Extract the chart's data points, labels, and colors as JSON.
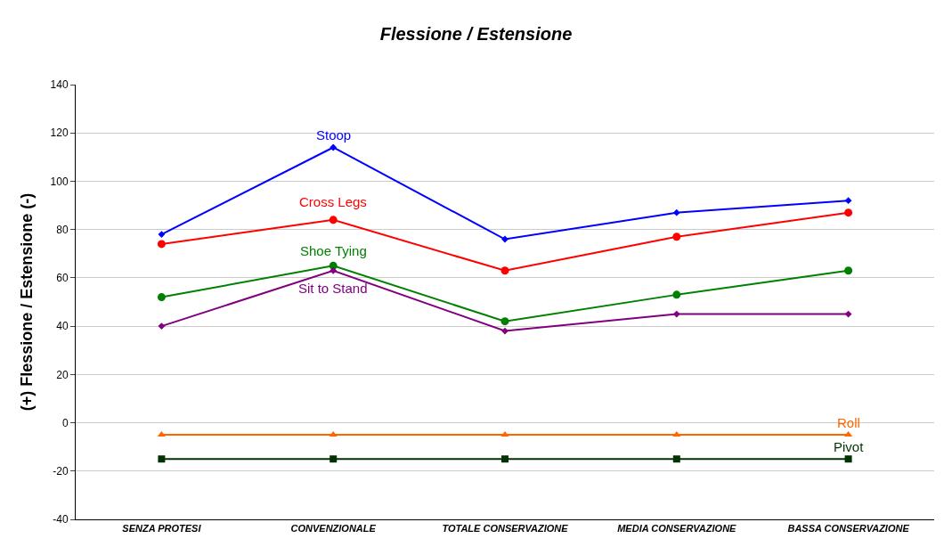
{
  "chart_data": {
    "type": "line",
    "title": "Flessione / Estensione",
    "ylabel": "(+) Flessione / Estensione (-)",
    "categories": [
      "SENZA PROTESI",
      "CONVENZIONALE",
      "TOTALE CONSERVAZIONE",
      "MEDIA CONSERVAZIONE",
      "BASSA CONSERVAZIONE"
    ],
    "series": [
      {
        "name": "Stoop",
        "color": "#0000ff",
        "marker": "diamond",
        "values": [
          78,
          114,
          76,
          87,
          92
        ]
      },
      {
        "name": "Cross Legs",
        "color": "#ff0000",
        "marker": "circle",
        "values": [
          74,
          84,
          63,
          77,
          87
        ]
      },
      {
        "name": "Shoe Tying",
        "color": "#008000",
        "marker": "circle",
        "values": [
          52,
          65,
          42,
          53,
          63
        ]
      },
      {
        "name": "Sit to Stand",
        "color": "#800080",
        "marker": "diamond",
        "values": [
          40,
          63,
          38,
          45,
          45
        ]
      },
      {
        "name": "Roll",
        "color": "#ff6600",
        "marker": "triangle",
        "values": [
          -5,
          -5,
          -5,
          -5,
          -5
        ]
      },
      {
        "name": "Pivot",
        "color": "#003300",
        "marker": "square",
        "values": [
          -15,
          -15,
          -15,
          -15,
          -15
        ]
      }
    ],
    "ylim": [
      -40,
      140
    ],
    "yticks": [
      -40,
      -20,
      0,
      20,
      40,
      60,
      80,
      100,
      120,
      140
    ],
    "grid": "y",
    "legend": false,
    "line_style": "solid"
  }
}
